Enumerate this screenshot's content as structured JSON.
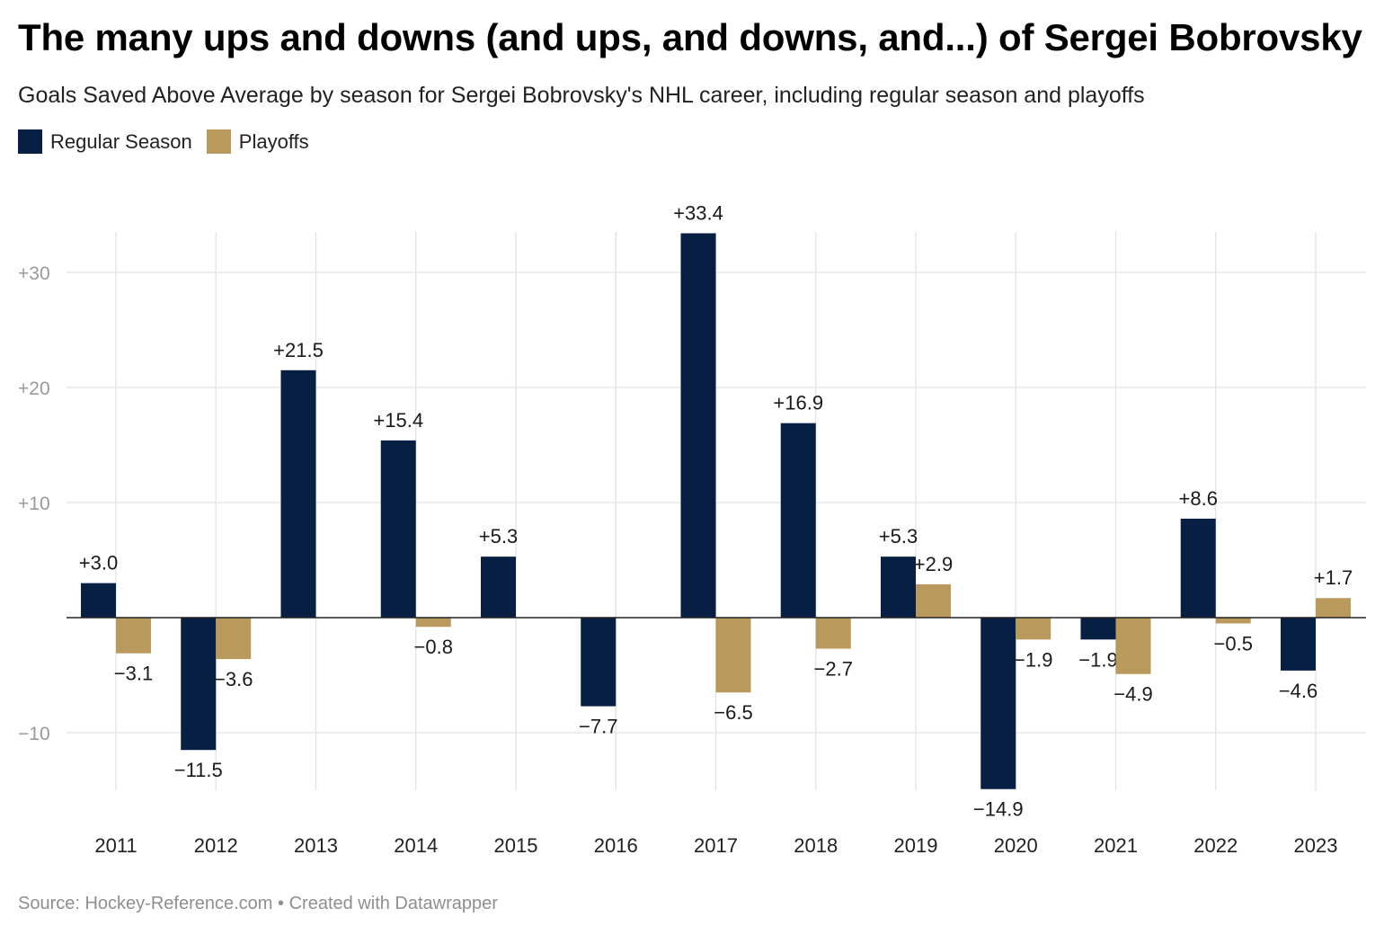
{
  "title": "The many ups and downs (and ups, and downs, and...) of Sergei Bobrovsky",
  "subtitle": "Goals Saved Above Average by season for Sergei Bobrovsky's NHL career, including regular season and playoffs",
  "legend": [
    {
      "label": "Regular Season",
      "color": "#061f42"
    },
    {
      "label": "Playoffs",
      "color": "#ba995c"
    }
  ],
  "footer": {
    "source": "Source: Hockey-Reference.com",
    "separator": "•",
    "credit": "Created with Datawrapper"
  },
  "chart_data": {
    "type": "bar",
    "categories": [
      "2011",
      "2012",
      "2013",
      "2014",
      "2015",
      "2016",
      "2017",
      "2018",
      "2019",
      "2020",
      "2021",
      "2022",
      "2023"
    ],
    "series": [
      {
        "name": "Regular Season",
        "color": "#061f42",
        "values": [
          3.0,
          -11.5,
          21.5,
          15.4,
          5.3,
          -7.7,
          33.4,
          16.9,
          5.3,
          -14.9,
          -1.9,
          8.6,
          -4.6
        ],
        "labels": [
          "+3.0",
          "−11.5",
          "+21.5",
          "+15.4",
          "+5.3",
          "−7.7",
          "+33.4",
          "+16.9",
          "+5.3",
          "−14.9",
          "−1.9",
          "+8.6",
          "−4.6"
        ]
      },
      {
        "name": "Playoffs",
        "color": "#ba995c",
        "values": [
          -3.1,
          -3.6,
          null,
          -0.8,
          null,
          null,
          -6.5,
          -2.7,
          2.9,
          -1.9,
          -4.9,
          -0.5,
          1.7
        ],
        "labels": [
          "−3.1",
          "−3.6",
          "",
          "−0.8",
          "",
          "",
          "−6.5",
          "−2.7",
          "+2.9",
          "−1.9",
          "−4.9",
          "−0.5",
          "+1.7"
        ]
      }
    ],
    "yticks": [
      -10,
      10,
      20,
      30
    ],
    "ytick_labels": [
      "−10",
      "+10",
      "+20",
      "+30"
    ],
    "ylim": [
      -15,
      33.4
    ],
    "grid": true,
    "legend_position": "top-left"
  }
}
